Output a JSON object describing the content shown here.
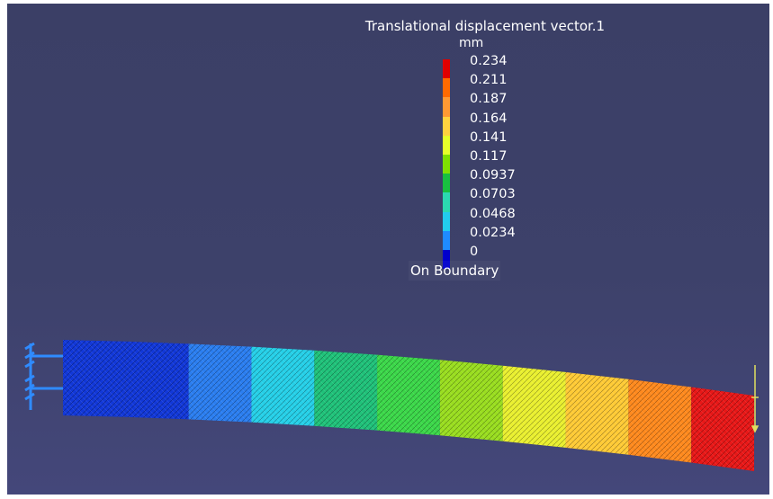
{
  "legend": {
    "title": "Translational displacement vector.1",
    "unit": "mm",
    "ticks": [
      "0.234",
      "0.211",
      "0.187",
      "0.164",
      "0.141",
      "0.117",
      "0.0937",
      "0.0703",
      "0.0468",
      "0.0234",
      "0"
    ],
    "colors": [
      "#e00000",
      "#ff6a00",
      "#ff9933",
      "#ffd23f",
      "#e6ff2a",
      "#7fe000",
      "#18c040",
      "#2bd9b0",
      "#22ccee",
      "#1f8bff",
      "#0000cc"
    ],
    "footer": "On Boundary"
  },
  "beam": {
    "segment_colors": [
      "#1238d8",
      "#1238d8",
      "#2b7ef0",
      "#26d0e8",
      "#20c27a",
      "#3cd84a",
      "#9ade20",
      "#eaf030",
      "#ffcb36",
      "#ff8a1e",
      "#e81818"
    ]
  },
  "background_color": "#3d416a"
}
